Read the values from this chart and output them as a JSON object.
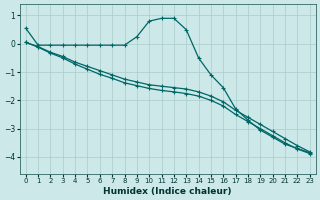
{
  "xlabel": "Humidex (Indice chaleur)",
  "bg_color": "#cce8e8",
  "grid_color": "#aacccc",
  "line_color": "#006666",
  "xlim": [
    -0.5,
    23.5
  ],
  "ylim": [
    -4.6,
    1.4
  ],
  "yticks": [
    1,
    0,
    -1,
    -2,
    -3,
    -4
  ],
  "xticks": [
    0,
    1,
    2,
    3,
    4,
    5,
    6,
    7,
    8,
    9,
    10,
    11,
    12,
    13,
    14,
    15,
    16,
    17,
    18,
    19,
    20,
    21,
    22,
    23
  ],
  "line1_x": [
    0,
    1,
    2,
    3,
    4,
    5,
    6,
    7,
    8,
    9,
    10,
    11,
    12,
    13,
    14,
    15,
    16,
    17,
    18,
    19,
    20,
    21,
    22,
    23
  ],
  "line1_y": [
    0.55,
    -0.05,
    -0.05,
    -0.05,
    -0.05,
    -0.05,
    -0.05,
    -0.05,
    -0.05,
    0.25,
    0.8,
    0.9,
    0.9,
    0.5,
    -0.5,
    -1.1,
    -1.55,
    -2.3,
    -2.7,
    -3.05,
    -3.3,
    -3.55,
    -3.7,
    -3.85
  ],
  "line2_x": [
    0,
    1,
    2,
    3,
    4,
    5,
    6,
    7,
    8,
    9,
    10,
    11,
    12,
    13,
    14,
    15,
    16,
    17,
    18,
    19,
    20,
    21,
    22,
    23
  ],
  "line2_y": [
    0.05,
    -0.1,
    -0.3,
    -0.45,
    -0.65,
    -0.8,
    -0.95,
    -1.1,
    -1.25,
    -1.35,
    -1.45,
    -1.5,
    -1.55,
    -1.6,
    -1.7,
    -1.85,
    -2.05,
    -2.35,
    -2.6,
    -2.85,
    -3.1,
    -3.35,
    -3.6,
    -3.82
  ],
  "line3_x": [
    0,
    1,
    2,
    3,
    4,
    5,
    6,
    7,
    8,
    9,
    10,
    11,
    12,
    13,
    14,
    15,
    16,
    17,
    18,
    19,
    20,
    21,
    22,
    23
  ],
  "line3_y": [
    0.05,
    -0.12,
    -0.33,
    -0.5,
    -0.72,
    -0.9,
    -1.08,
    -1.22,
    -1.38,
    -1.48,
    -1.58,
    -1.65,
    -1.7,
    -1.76,
    -1.85,
    -2.0,
    -2.2,
    -2.5,
    -2.75,
    -3.0,
    -3.25,
    -3.5,
    -3.72,
    -3.88
  ]
}
